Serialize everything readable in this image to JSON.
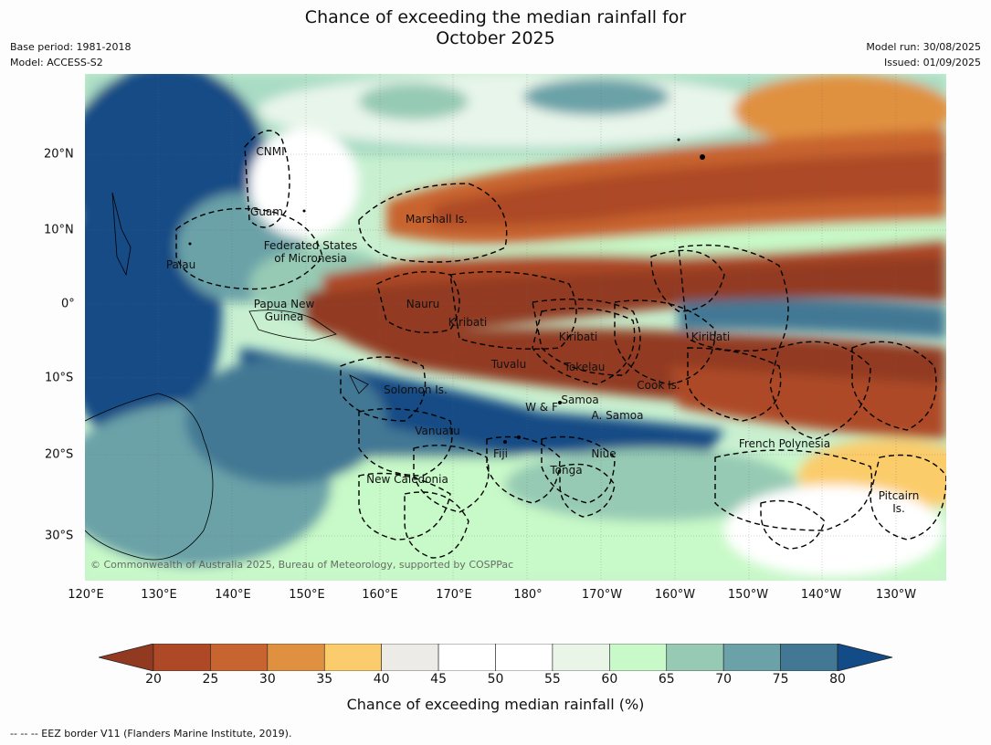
{
  "title_line1": "Chance of exceeding the median rainfall for",
  "title_line2": "October 2025",
  "base_period": "Base period: 1981-2018",
  "model": "Model: ACCESS-S2",
  "model_run": "Model run: 30/08/2025",
  "issued": "Issued: 01/09/2025",
  "copyright": "© Commonwealth of Australia 2025, Bureau of Meteorology, supported by COSPPac",
  "lat_labels": [
    "20°N",
    "10°N",
    "0°",
    "10°S",
    "20°S",
    "30°S"
  ],
  "lon_labels": [
    "120°E",
    "130°E",
    "140°E",
    "150°E",
    "160°E",
    "170°E",
    "180°",
    "170°W",
    "160°W",
    "150°W",
    "140°W",
    "130°W"
  ],
  "places": {
    "cnmi": "CNMI",
    "guam": "Guam",
    "marshall": "Marshall Is.",
    "fsm_1": "Federated States",
    "fsm_2": "of Micronesia",
    "palau": "Palau",
    "png_1": "Papua New",
    "png_2": "Guinea",
    "nauru": "Nauru",
    "kiribati_w": "Kiribati",
    "kiribati_c": "Kiribati",
    "kiribati_e": "Kiribati",
    "tuvalu": "Tuvalu",
    "tokelau": "Tokelau",
    "cook": "Cook Is.",
    "solomon": "Solomon Is.",
    "samoa": "Samoa",
    "wf": "W & F",
    "asamoa": "A. Samoa",
    "vanuatu": "Vanuatu",
    "fiji": "Fiji",
    "niue": "Niue",
    "tonga": "Tonga",
    "newcal": "New Caledonia",
    "frpoly": "French Polynesia",
    "pitcairn_1": "Pitcairn",
    "pitcairn_2": "Is."
  },
  "colorbar": {
    "ticks": [
      "20",
      "25",
      "30",
      "35",
      "40",
      "45",
      "50",
      "55",
      "60",
      "65",
      "70",
      "75",
      "80"
    ],
    "colors": [
      "#ad4927",
      "#c8642f",
      "#e0913f",
      "#fbcc6b",
      "#ecebe5",
      "#ffffff",
      "#ffffff",
      "#e9f6e7",
      "#c8f9c8",
      "#96cab4",
      "#6aa2a8",
      "#427894"
    ],
    "under_color": "#923a21",
    "over_color": "#124b85",
    "label": "Chance of exceeding median rainfall (%)"
  },
  "footnote": "-- -- -- EEZ border V11 (Flanders Marine Institute, 2019)."
}
